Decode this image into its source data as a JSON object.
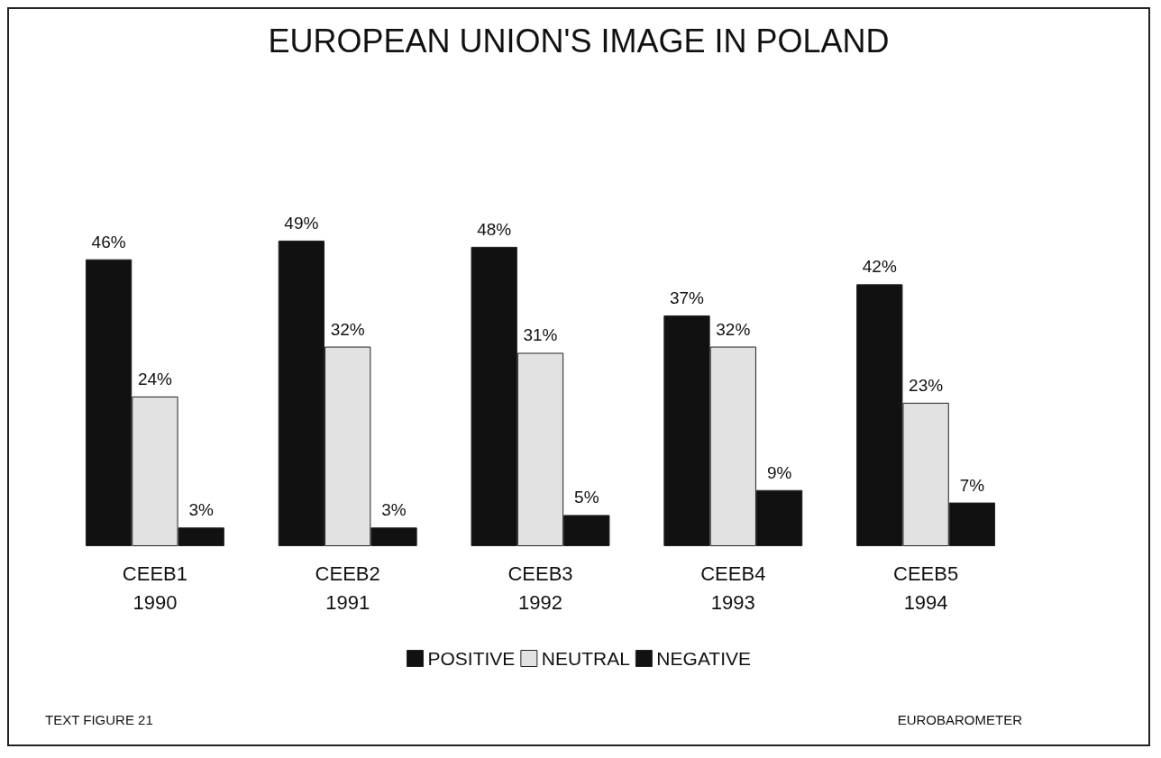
{
  "chart_data": {
    "type": "bar",
    "title": "EUROPEAN UNION'S IMAGE IN POLAND",
    "categories": [
      "CEEB1\n1990",
      "CEEB2\n1991",
      "CEEB3\n1992",
      "CEEB4\n1993",
      "CEEB5\n1994"
    ],
    "series": [
      {
        "name": "POSITIVE",
        "color": "#111111",
        "values": [
          46,
          49,
          48,
          37,
          42
        ],
        "value_labels": [
          "46%",
          "49%",
          "48%",
          "37%",
          "42%"
        ]
      },
      {
        "name": "NEUTRAL",
        "color": "#e2e2e2",
        "values": [
          24,
          32,
          31,
          32,
          23
        ],
        "value_labels": [
          "24%",
          "32%",
          "31%",
          "32%",
          "23%"
        ]
      },
      {
        "name": "NEGATIVE",
        "color": "#111111",
        "values": [
          3,
          3,
          5,
          9,
          7
        ],
        "value_labels": [
          "3%",
          "3%",
          "5%",
          "9%",
          "7%"
        ]
      }
    ],
    "legend": "bottom",
    "annotations": [
      "TEXT FIGURE 21",
      "EUROBAROMETER"
    ]
  }
}
